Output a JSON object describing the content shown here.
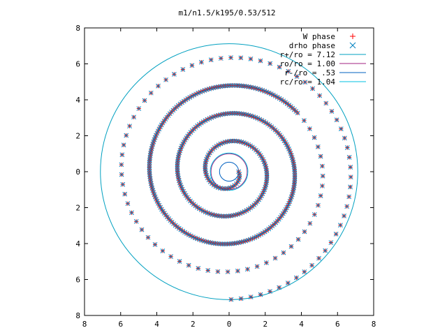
{
  "chart_data": {
    "type": "scatter",
    "title": "m1/n1.5/k195/0.53/512",
    "xlabel": "",
    "ylabel": "",
    "xlim": [
      -8,
      8
    ],
    "ylim": [
      -8,
      8
    ],
    "x_tick_labels": [
      "8",
      "6",
      "4",
      "2",
      "0",
      "2",
      "4",
      "6",
      "8"
    ],
    "y_tick_labels": [
      "8",
      "6",
      "4",
      "2",
      "0",
      "2",
      "4",
      "6",
      "8"
    ],
    "grid": false,
    "legend_position": "top-right",
    "legend": [
      {
        "label": "W phase",
        "marker": "plus",
        "color": "#ff0000"
      },
      {
        "label": "drho phase",
        "marker": "cross",
        "color": "#0080c0"
      },
      {
        "label": "r+/ro = 7.12",
        "marker": "line",
        "color": "#00a0c0"
      },
      {
        "label": "ro/ro = 1.00",
        "marker": "line",
        "color": "#a02080"
      },
      {
        "label": "r-/ro = .53",
        "marker": "line",
        "color": "#0060c0"
      },
      {
        "label": "rc/ro = 1.04",
        "marker": "line",
        "color": "#00c0e0"
      }
    ],
    "circles": [
      {
        "name": "r+/ro = 7.12",
        "radius": 7.12
      },
      {
        "name": "ro/ro = 1.00",
        "radius": 1.0
      },
      {
        "name": "r-/ro = .53",
        "radius": 0.53
      },
      {
        "name": "rc/ro = 1.04",
        "radius": 1.04
      }
    ],
    "spiral_series": {
      "description_of_data": "phase spiral points",
      "r_min": 0.53,
      "r_max": 7.12,
      "radial_step_per_turn": 1.55,
      "start_angle_deg": 0,
      "point_spacing": 0.13,
      "sparse_spacing_beyond_r": 5.0,
      "sparse_point_spacing": 0.55
    }
  }
}
